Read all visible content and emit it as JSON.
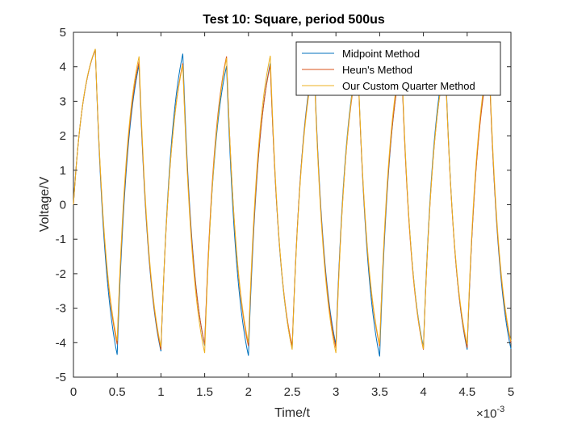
{
  "chart_data": {
    "type": "line",
    "title": "Test 10: Square, period 500us",
    "xlabel": "Time/t",
    "ylabel": "Voltage/V",
    "x_exponent_label": "×10",
    "x_exponent_power": "-3",
    "xlim": [
      0,
      0.005
    ],
    "ylim": [
      -5,
      5
    ],
    "x_scale": 0.001,
    "x_ticks": [
      0,
      0.5,
      1,
      1.5,
      2,
      2.5,
      3,
      3.5,
      4,
      4.5,
      5
    ],
    "x_tick_labels": [
      "0",
      "0.5",
      "1",
      "1.5",
      "2",
      "2.5",
      "3",
      "3.5",
      "4",
      "4.5",
      "5"
    ],
    "y_ticks": [
      -5,
      -4,
      -3,
      -2,
      -1,
      0,
      1,
      2,
      3,
      4,
      5
    ],
    "y_tick_labels": [
      "-5",
      "-4",
      "-3",
      "-2",
      "-1",
      "0",
      "1",
      "2",
      "3",
      "4",
      "5"
    ],
    "grid": false,
    "legend_position": "top-right",
    "series": [
      {
        "name": "Midpoint Method",
        "color": "#0072BD",
        "points": [
          [
            0,
            0
          ],
          [
            0.00025,
            4.5
          ],
          [
            0.0005,
            -4.35
          ],
          [
            0.00075,
            4.05
          ],
          [
            0.001,
            -4.25
          ],
          [
            0.00125,
            4.38
          ],
          [
            0.0015,
            -4.08
          ],
          [
            0.00175,
            4.02
          ],
          [
            0.002,
            -4.38
          ],
          [
            0.00225,
            4.1
          ],
          [
            0.0025,
            -4.18
          ],
          [
            0.00275,
            4.2
          ],
          [
            0.003,
            -4.05
          ],
          [
            0.00325,
            4.22
          ],
          [
            0.0035,
            -4.4
          ],
          [
            0.00375,
            4.15
          ],
          [
            0.004,
            -4.12
          ],
          [
            0.00425,
            4.25
          ],
          [
            0.0045,
            -4.2
          ],
          [
            0.00475,
            4.18
          ],
          [
            0.005,
            -4.18
          ]
        ]
      },
      {
        "name": "Heun's Method",
        "color": "#D95319",
        "points": [
          [
            0,
            0
          ],
          [
            0.00025,
            4.5
          ],
          [
            0.0005,
            -4.05
          ],
          [
            0.00075,
            4.15
          ],
          [
            0.001,
            -4.2
          ],
          [
            0.00125,
            4.1
          ],
          [
            0.0015,
            -4.05
          ],
          [
            0.00175,
            4.3
          ],
          [
            0.002,
            -4.1
          ],
          [
            0.00225,
            4.05
          ],
          [
            0.0025,
            -4.1
          ],
          [
            0.00275,
            4.1
          ],
          [
            0.003,
            -4.15
          ],
          [
            0.00325,
            4.1
          ],
          [
            0.0035,
            -4.1
          ],
          [
            0.00375,
            4.1
          ],
          [
            0.004,
            -4.2
          ],
          [
            0.00425,
            4.1
          ],
          [
            0.0045,
            -4.15
          ],
          [
            0.00475,
            4.1
          ],
          [
            0.005,
            -4.0
          ]
        ]
      },
      {
        "name": "Our Custom Quarter Method",
        "color": "#EDB120",
        "points": [
          [
            0,
            0
          ],
          [
            0.00025,
            4.52
          ],
          [
            0.0005,
            -3.95
          ],
          [
            0.00075,
            4.3
          ],
          [
            0.001,
            -4.12
          ],
          [
            0.00125,
            4.05
          ],
          [
            0.0015,
            -4.3
          ],
          [
            0.00175,
            4.25
          ],
          [
            0.002,
            -4.0
          ],
          [
            0.00225,
            4.32
          ],
          [
            0.0025,
            -4.2
          ],
          [
            0.00275,
            4.05
          ],
          [
            0.003,
            -4.3
          ],
          [
            0.00325,
            4.2
          ],
          [
            0.0035,
            -4.05
          ],
          [
            0.00375,
            4.3
          ],
          [
            0.004,
            -4.18
          ],
          [
            0.00425,
            4.1
          ],
          [
            0.0045,
            -4.05
          ],
          [
            0.00475,
            4.3
          ],
          [
            0.005,
            -3.95
          ]
        ]
      }
    ]
  }
}
